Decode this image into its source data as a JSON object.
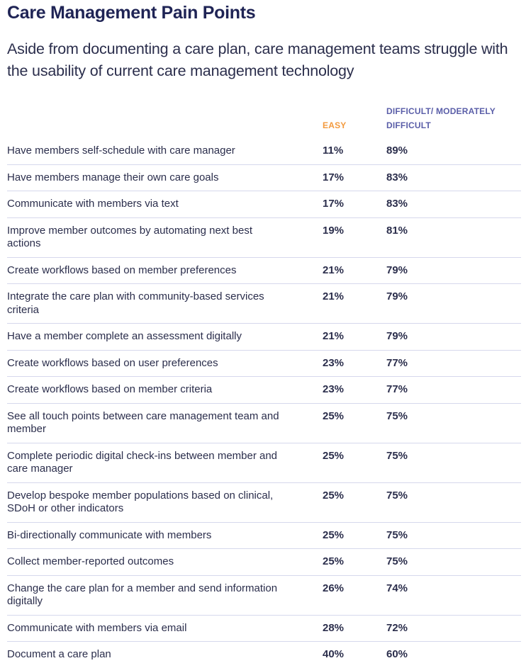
{
  "title": "Care Management Pain Points",
  "subtitle": "Aside from documenting a care plan, care management teams struggle with the usability of current care management technology",
  "colors": {
    "title": "#1f2455",
    "easy": "#f39a3e",
    "difficult": "#5a5ea8",
    "divider": "#d6d8ec"
  },
  "columns": {
    "easy": "EASY",
    "difficult": "DIFFICULT/ MODERATELY DIFFICULT"
  },
  "rows": [
    {
      "label": "Have members self-schedule with care manager",
      "easy": "11%",
      "difficult": "89%"
    },
    {
      "label": "Have members manage their own care goals",
      "easy": "17%",
      "difficult": "83%"
    },
    {
      "label": "Communicate with members via text",
      "easy": "17%",
      "difficult": "83%"
    },
    {
      "label": "Improve member outcomes by automating next best actions",
      "easy": "19%",
      "difficult": "81%"
    },
    {
      "label": "Create workflows based on member preferences",
      "easy": "21%",
      "difficult": "79%"
    },
    {
      "label": "Integrate the care plan with community-based services criteria",
      "easy": "21%",
      "difficult": "79%"
    },
    {
      "label": "Have a member complete an assessment digitally",
      "easy": "21%",
      "difficult": "79%"
    },
    {
      "label": "Create workflows based on user preferences",
      "easy": "23%",
      "difficult": "77%"
    },
    {
      "label": "Create workflows based on member criteria",
      "easy": "23%",
      "difficult": "77%"
    },
    {
      "label": "See all touch points between care management team and member",
      "easy": "25%",
      "difficult": "75%"
    },
    {
      "label": "Complete periodic digital check-ins between member and care manager",
      "easy": "25%",
      "difficult": "75%"
    },
    {
      "label": "Develop bespoke member populations based on clinical, SDoH or other indicators",
      "easy": "25%",
      "difficult": "75%"
    },
    {
      "label": "Bi-directionally communicate with members",
      "easy": "25%",
      "difficult": "75%"
    },
    {
      "label": "Collect member-reported outcomes",
      "easy": "25%",
      "difficult": "75%"
    },
    {
      "label": "Change the care plan for a member and send information digitally",
      "easy": "26%",
      "difficult": "74%"
    },
    {
      "label": "Communicate with members via email",
      "easy": "28%",
      "difficult": "72%"
    },
    {
      "label": "Document a care plan",
      "easy": "40%",
      "difficult": "60%"
    }
  ]
}
